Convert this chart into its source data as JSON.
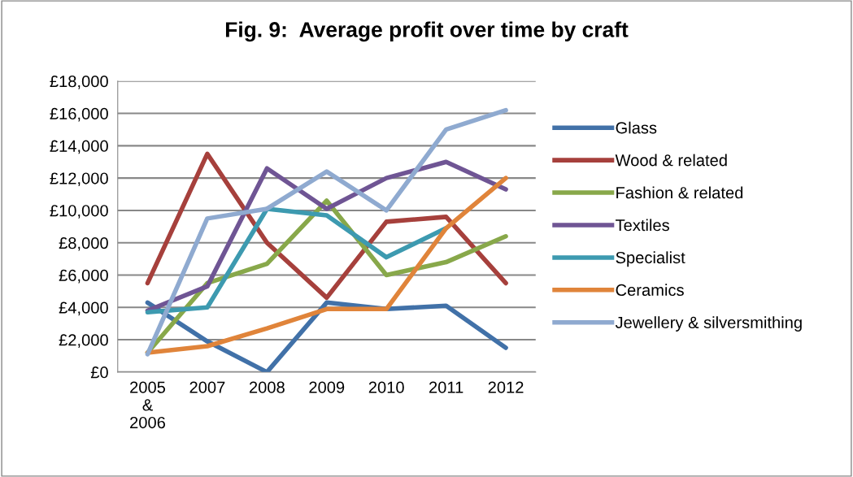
{
  "chart_data": {
    "type": "line",
    "title": "Fig. 9:  Average profit over time by craft",
    "categories": [
      "2005\n&\n2006",
      "2007",
      "2008",
      "2009",
      "2010",
      "2011",
      "2012"
    ],
    "ylim": [
      0,
      18000
    ],
    "yticks": [
      {
        "value": 0,
        "label": "£0"
      },
      {
        "value": 2000,
        "label": "£2,000"
      },
      {
        "value": 4000,
        "label": "£4,000"
      },
      {
        "value": 6000,
        "label": "£6,000"
      },
      {
        "value": 8000,
        "label": "£8,000"
      },
      {
        "value": 10000,
        "label": "£10,000"
      },
      {
        "value": 12000,
        "label": "£12,000"
      },
      {
        "value": 14000,
        "label": "£14,000"
      },
      {
        "value": 16000,
        "label": "£16,000"
      },
      {
        "value": 18000,
        "label": "£18,000"
      }
    ],
    "grid": "y",
    "legend": "right",
    "marker": "none",
    "line_style": "solid",
    "series": [
      {
        "name": "Glass",
        "color": "#4171a8",
        "values": [
          4300,
          1900,
          0,
          4300,
          3900,
          4100,
          1500
        ]
      },
      {
        "name": "Wood & related",
        "color": "#a6403c",
        "values": [
          5500,
          13500,
          8000,
          4600,
          9300,
          9600,
          5500
        ]
      },
      {
        "name": "Fashion & related",
        "color": "#88a84a",
        "values": [
          1200,
          5500,
          6700,
          10600,
          6000,
          6800,
          8400
        ]
      },
      {
        "name": "Textiles",
        "color": "#6f5594",
        "values": [
          3800,
          5300,
          12600,
          10100,
          12000,
          13000,
          11300
        ]
      },
      {
        "name": "Specialist",
        "color": "#3d9ab0",
        "values": [
          3700,
          4000,
          10100,
          9700,
          7100,
          8900,
          null
        ]
      },
      {
        "name": "Ceramics",
        "color": "#e0843a",
        "values": [
          1200,
          1600,
          2700,
          3900,
          3900,
          8900,
          12000
        ]
      },
      {
        "name": "Jewellery & silversmithing",
        "color": "#8faad0",
        "values": [
          1100,
          9500,
          10100,
          12400,
          10000,
          15000,
          16200
        ]
      }
    ]
  }
}
